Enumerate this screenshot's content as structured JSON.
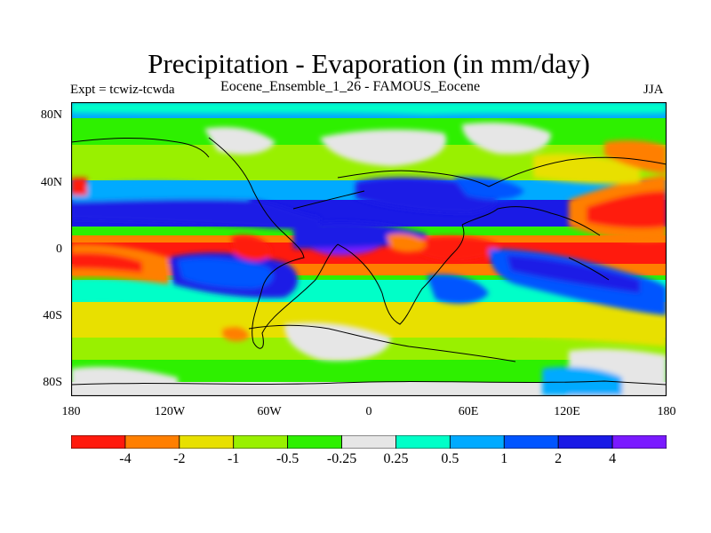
{
  "title": "Precipitation - Evaporation (in mm/day)",
  "left_label": "Expt = tcwiz-tcwda",
  "center_label": "Eocene_Ensemble_1_26 - FAMOUS_Eocene",
  "right_label": "JJA",
  "lat_ticks": [
    "80N",
    "40N",
    "0",
    "40S",
    "80S"
  ],
  "lon_ticks": [
    "180",
    "120W",
    "60W",
    "0",
    "60E",
    "120E",
    "180"
  ],
  "colorbar": {
    "labels": [
      "-4",
      "-2",
      "-1",
      "-0.5",
      "-0.25",
      "0.25",
      "0.5",
      "1",
      "2",
      "4"
    ],
    "colors": [
      "#ff1a0d",
      "#ff7f00",
      "#e8e000",
      "#99f000",
      "#2ef000",
      "#e6e6e6",
      "#00ffc8",
      "#00aaff",
      "#0055ff",
      "#1a1ae6",
      "#7a1aff"
    ]
  }
}
